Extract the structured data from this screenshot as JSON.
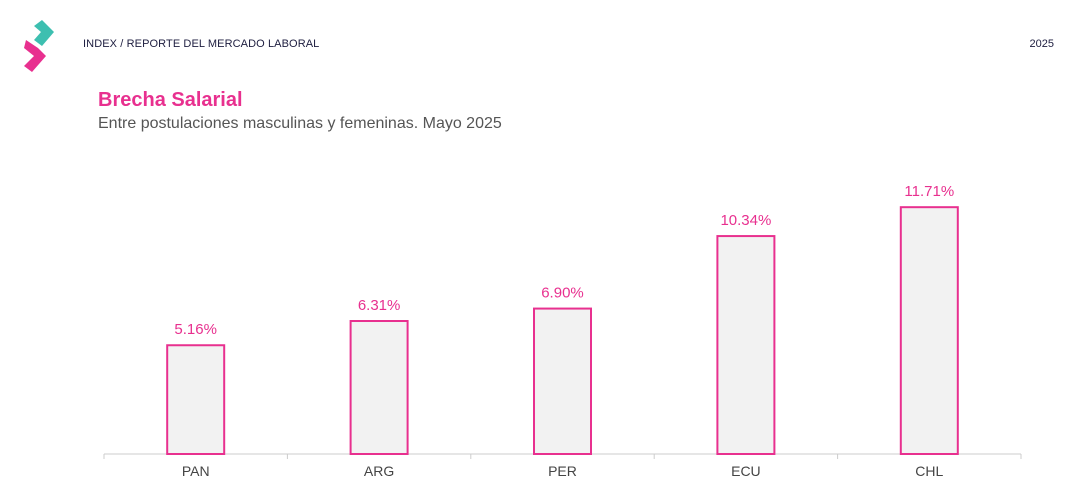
{
  "header": {
    "label": "INDEX / REPORTE DEL MERCADO LABORAL",
    "year": "2025",
    "logo_icon": "chevron-logo-icon"
  },
  "colors": {
    "accent": "#e8308f",
    "logo_teal": "#3dbfb0",
    "bar_fill": "#f2f2f2",
    "axis": "#cccccc",
    "category_text": "#444444"
  },
  "chart_data": {
    "type": "bar",
    "title": "Brecha Salarial",
    "subtitle": "Entre postulaciones masculinas y femeninas. Mayo 2025",
    "categories": [
      "PAN",
      "ARG",
      "PER",
      "ECU",
      "CHL"
    ],
    "values": [
      5.16,
      6.31,
      6.9,
      10.34,
      11.71
    ],
    "data_labels": [
      "5.16%",
      "6.31%",
      "6.90%",
      "10.34%",
      "11.71%"
    ],
    "xlabel": "",
    "ylabel": "",
    "ylim": [
      0,
      13
    ],
    "grid": false,
    "legend": "none"
  }
}
